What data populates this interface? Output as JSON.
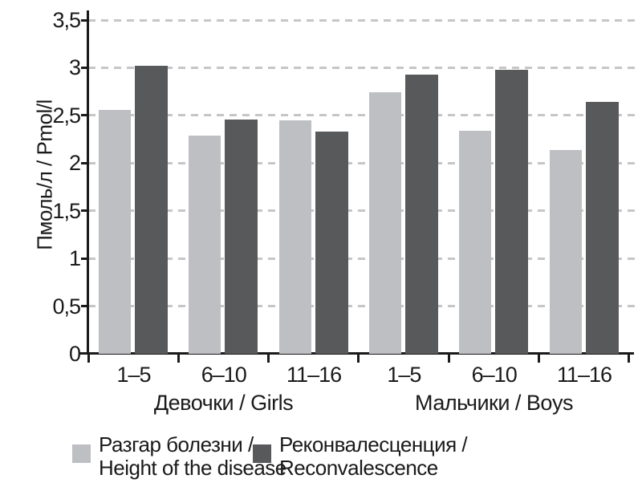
{
  "chart_data": {
    "type": "bar",
    "title": "",
    "ylabel": "Пмоль/л / Pmol/l",
    "ylim": [
      0,
      3.5
    ],
    "ytick_step": 0.5,
    "ytick_labels": [
      "0",
      "0,5",
      "1",
      "1,5",
      "2",
      "2,5",
      "3",
      "3,5"
    ],
    "grid": "horizontal dashed",
    "legend_position": "bottom",
    "categories": [
      "1–5",
      "6–10",
      "11–16",
      "1–5",
      "6–10",
      "11–16"
    ],
    "group_labels": [
      "Девочки / Girls",
      "Мальчики / Boys"
    ],
    "series": [
      {
        "name": "Разгар болезни / Height of the disease",
        "legend_line1": "Разгар болезни /",
        "legend_line2": "Height of the disease",
        "color": "#bdbfc2",
        "values": [
          2.56,
          2.29,
          2.45,
          2.74,
          2.34,
          2.14
        ]
      },
      {
        "name": "Реконвалесценция / Reconvalescence",
        "legend_line1": "Реконвалесценция /",
        "legend_line2": "Reconvalescence",
        "color": "#58595b",
        "values": [
          3.02,
          2.46,
          2.33,
          2.93,
          2.98,
          2.64
        ]
      }
    ],
    "colors": {
      "axis": "#1a1a1a",
      "grid": "#c6c6c6",
      "text": "#1a1a1a",
      "background": "#ffffff"
    }
  }
}
